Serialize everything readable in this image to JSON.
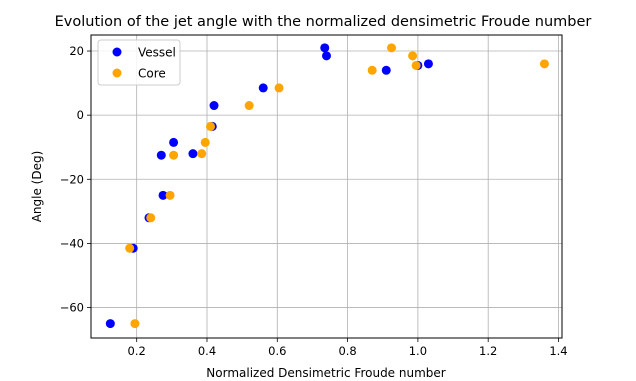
{
  "chart_data": {
    "type": "scatter",
    "title": "Evolution of the jet angle with the normalized densimetric Froude number",
    "xlabel": "Normalized Densimetric Froude number",
    "ylabel": "Angle (Deg)",
    "xlim": [
      0.07,
      1.41
    ],
    "ylim": [
      -69.5,
      25
    ],
    "xticks": [
      "0.2",
      "0.4",
      "0.6",
      "0.8",
      "1.0",
      "1.2",
      "1.4"
    ],
    "xtick_values": [
      0.2,
      0.4,
      0.6,
      0.8,
      1.0,
      1.2,
      1.4
    ],
    "yticks": [
      "−60",
      "−40",
      "−20",
      "0",
      "20"
    ],
    "ytick_values": [
      -60,
      -40,
      -20,
      0,
      20
    ],
    "grid": true,
    "legend_position": "top-left",
    "series": [
      {
        "name": "Vessel",
        "color": "#0000ff",
        "points": [
          [
            0.125,
            -65
          ],
          [
            0.19,
            -41.5
          ],
          [
            0.235,
            -32
          ],
          [
            0.27,
            -12.5
          ],
          [
            0.275,
            -25
          ],
          [
            0.305,
            -8.5
          ],
          [
            0.36,
            -12
          ],
          [
            0.415,
            -3.5
          ],
          [
            0.42,
            3
          ],
          [
            0.56,
            8.5
          ],
          [
            0.735,
            21
          ],
          [
            0.74,
            18.5
          ],
          [
            0.91,
            14
          ],
          [
            1.0,
            15.5
          ],
          [
            1.03,
            16
          ]
        ]
      },
      {
        "name": "Core",
        "color": "#ffa500",
        "points": [
          [
            0.18,
            -41.5
          ],
          [
            0.195,
            -65
          ],
          [
            0.24,
            -32
          ],
          [
            0.295,
            -25
          ],
          [
            0.305,
            -12.5
          ],
          [
            0.385,
            -12
          ],
          [
            0.395,
            -8.5
          ],
          [
            0.41,
            -3.5
          ],
          [
            0.52,
            3
          ],
          [
            0.605,
            8.5
          ],
          [
            0.87,
            14
          ],
          [
            0.925,
            21
          ],
          [
            0.985,
            18.5
          ],
          [
            0.995,
            15.5
          ],
          [
            1.36,
            16
          ]
        ]
      }
    ]
  }
}
